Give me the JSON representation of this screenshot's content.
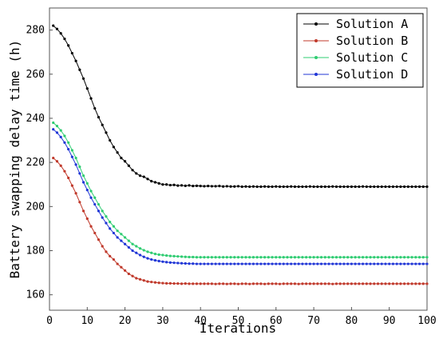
{
  "chart_data": {
    "type": "line",
    "title": "",
    "xlabel": "Iterations",
    "ylabel": "Battery swapping delay time (h)",
    "xlim": [
      0,
      100
    ],
    "ylim": [
      153,
      290
    ],
    "x_ticks": [
      0,
      10,
      20,
      30,
      40,
      50,
      60,
      70,
      80,
      90,
      100
    ],
    "y_ticks": [
      160,
      180,
      200,
      220,
      240,
      260,
      280
    ],
    "grid": false,
    "legend_position": "top-right",
    "x": [
      1,
      2,
      3,
      4,
      5,
      6,
      7,
      8,
      9,
      10,
      11,
      12,
      13,
      14,
      15,
      16,
      17,
      18,
      19,
      20,
      21,
      22,
      23,
      24,
      25,
      26,
      27,
      28,
      29,
      30,
      31,
      32,
      33,
      34,
      35,
      36,
      37,
      38,
      39,
      40,
      41,
      42,
      43,
      44,
      45,
      46,
      47,
      48,
      49,
      50,
      51,
      52,
      53,
      54,
      55,
      56,
      57,
      58,
      59,
      60,
      61,
      62,
      63,
      64,
      65,
      66,
      67,
      68,
      69,
      70,
      71,
      72,
      73,
      74,
      75,
      76,
      77,
      78,
      79,
      80,
      81,
      82,
      83,
      84,
      85,
      86,
      87,
      88,
      89,
      90,
      91,
      92,
      93,
      94,
      95,
      96,
      97,
      98,
      99,
      100
    ],
    "series": [
      {
        "name": "Solution A",
        "color": "#000000",
        "values": [
          282,
          280.5,
          278.5,
          276,
          273,
          269.5,
          266,
          262,
          258,
          253.5,
          249,
          244.5,
          240.5,
          237,
          233.5,
          230,
          227,
          224.5,
          222,
          220.5,
          218.5,
          216.5,
          215,
          214,
          213.5,
          212.5,
          211.5,
          211,
          210.5,
          210,
          210,
          209.7,
          209.8,
          209.5,
          209.6,
          209.4,
          209.6,
          209.3,
          209.4,
          209.3,
          209.2,
          209.3,
          209.2,
          209.2,
          209.3,
          209.1,
          209.2,
          209.1,
          209.1,
          209.2,
          209,
          209.1,
          209,
          209.1,
          209,
          209,
          209.1,
          209,
          209,
          209.1,
          209,
          209,
          209,
          209.1,
          209,
          209,
          209,
          209,
          209.1,
          209,
          209,
          209,
          209,
          209,
          209.1,
          209,
          209,
          209,
          209,
          209,
          209,
          209,
          209.1,
          209,
          209,
          209,
          209,
          209,
          209,
          209,
          209,
          209,
          209,
          209,
          209,
          209,
          209,
          209,
          209,
          209
        ]
      },
      {
        "name": "Solution B",
        "color": "#c0392b",
        "values": [
          222,
          220.5,
          218.5,
          216,
          213,
          209.5,
          206,
          202,
          198,
          194.5,
          191,
          188,
          185,
          182,
          179.5,
          177.5,
          176,
          174,
          172.5,
          171,
          169.5,
          168.5,
          167.5,
          167,
          166.5,
          166,
          165.8,
          165.6,
          165.4,
          165.3,
          165.2,
          165.2,
          165.1,
          165.1,
          165,
          165.1,
          165,
          165,
          165,
          165,
          165,
          165,
          165,
          164.9,
          165,
          165,
          164.9,
          165,
          165,
          164.9,
          165,
          165,
          164.9,
          165,
          165,
          165,
          164.9,
          165,
          165,
          165,
          164.9,
          165,
          165,
          165,
          165,
          164.9,
          165,
          165,
          165,
          165,
          165,
          165,
          165,
          165,
          164.9,
          165,
          165,
          165,
          165,
          165,
          165,
          165,
          165,
          165,
          165,
          165,
          165,
          165,
          165,
          165,
          165,
          165,
          165,
          165,
          165,
          165,
          165,
          165,
          165,
          165
        ]
      },
      {
        "name": "Solution C",
        "color": "#2ecc71",
        "values": [
          238,
          236.5,
          234.5,
          232,
          229,
          225.5,
          222,
          218,
          214,
          210.5,
          207,
          204,
          201,
          198,
          195.5,
          193,
          191,
          189,
          187.5,
          186,
          184.5,
          183,
          182,
          181,
          180.2,
          179.5,
          179,
          178.5,
          178.2,
          178,
          177.8,
          177.6,
          177.5,
          177.4,
          177.3,
          177.2,
          177.1,
          177.1,
          177,
          177,
          177,
          177,
          177,
          177,
          177,
          177,
          177,
          177,
          177,
          177,
          177,
          177,
          177,
          177,
          177,
          177,
          177,
          177,
          177,
          177,
          177,
          177,
          177,
          177,
          177,
          177,
          177,
          177,
          177,
          177,
          177,
          177,
          177,
          177,
          177,
          177,
          177,
          177,
          177,
          177,
          177,
          177,
          177,
          177,
          177,
          177,
          177,
          177,
          177,
          177,
          177,
          177,
          177,
          177,
          177,
          177,
          177,
          177,
          177,
          177
        ]
      },
      {
        "name": "Solution D",
        "color": "#2036d6",
        "values": [
          235,
          233.5,
          231.5,
          229,
          226,
          222.5,
          219,
          215,
          211,
          207.5,
          204,
          201,
          198,
          195,
          192.5,
          190,
          188,
          186,
          184.5,
          183,
          181.5,
          180,
          179,
          178,
          177.2,
          176.5,
          176,
          175.6,
          175.3,
          175,
          174.8,
          174.6,
          174.5,
          174.4,
          174.3,
          174.2,
          174.1,
          174.1,
          174,
          174,
          174,
          174,
          174,
          174,
          174,
          174,
          174,
          174,
          174,
          174,
          174,
          174,
          174,
          174,
          174,
          174,
          174,
          174,
          174,
          174,
          174,
          174,
          174,
          174,
          174,
          174,
          174,
          174,
          174,
          174,
          174,
          174,
          174,
          174,
          174,
          174,
          174,
          174,
          174,
          174,
          174,
          174,
          174,
          174,
          174,
          174,
          174,
          174,
          174,
          174,
          174,
          174,
          174,
          174,
          174,
          174,
          174,
          174,
          174,
          174
        ]
      }
    ]
  }
}
